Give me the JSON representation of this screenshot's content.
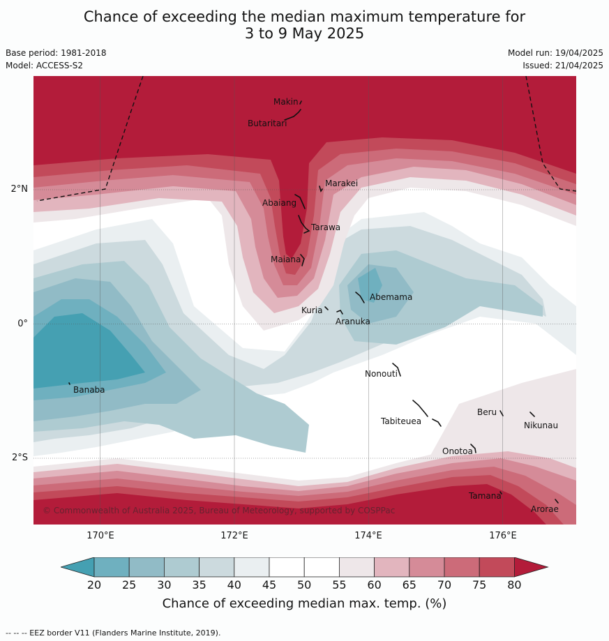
{
  "title": {
    "line1": "Chance of exceeding the median maximum temperature for",
    "line2": "3 to 9 May 2025"
  },
  "meta": {
    "base_period": "Base period: 1981-2018",
    "model": "Model: ACCESS-S2",
    "model_run": "Model run: 19/04/2025",
    "issued": "Issued: 21/04/2025"
  },
  "map": {
    "latitude_labels": [
      "2°N",
      "0°",
      "2°S"
    ],
    "longitude_labels": [
      "170°E",
      "172°E",
      "174°E",
      "176°E"
    ],
    "places": [
      "Makin",
      "Butaritari",
      "Marakei",
      "Abaiang",
      "Tarawa",
      "Maiana",
      "Kuria",
      "Abemama",
      "Aranuka",
      "Nonouti",
      "Banaba",
      "Tabiteuea",
      "Beru",
      "Nikunau",
      "Onotoa",
      "Tamana",
      "Arorae"
    ],
    "copyright": "© Commonwealth of Australia 2025, Bureau of Meteorology, supported by COSPPac",
    "eez_line_style": "dashed"
  },
  "colorbar": {
    "ticks": [
      "20",
      "25",
      "30",
      "35",
      "40",
      "45",
      "50",
      "55",
      "60",
      "65",
      "70",
      "75",
      "80"
    ],
    "colors": [
      "#45a0b2",
      "#6fb0bf",
      "#91bbc6",
      "#aecbd1",
      "#ccdade",
      "#eaeff1",
      "#ffffff",
      "#ffffff",
      "#eee7e9",
      "#e2b5be",
      "#d58b98",
      "#cc6b79",
      "#c24a5a",
      "#b31c3a"
    ],
    "title": "Chance of exceeding median max. temp. (%)"
  },
  "footer": {
    "eez_note": "--  --  -- EEZ border V11 (Flanders Marine Institute, 2019)."
  }
}
